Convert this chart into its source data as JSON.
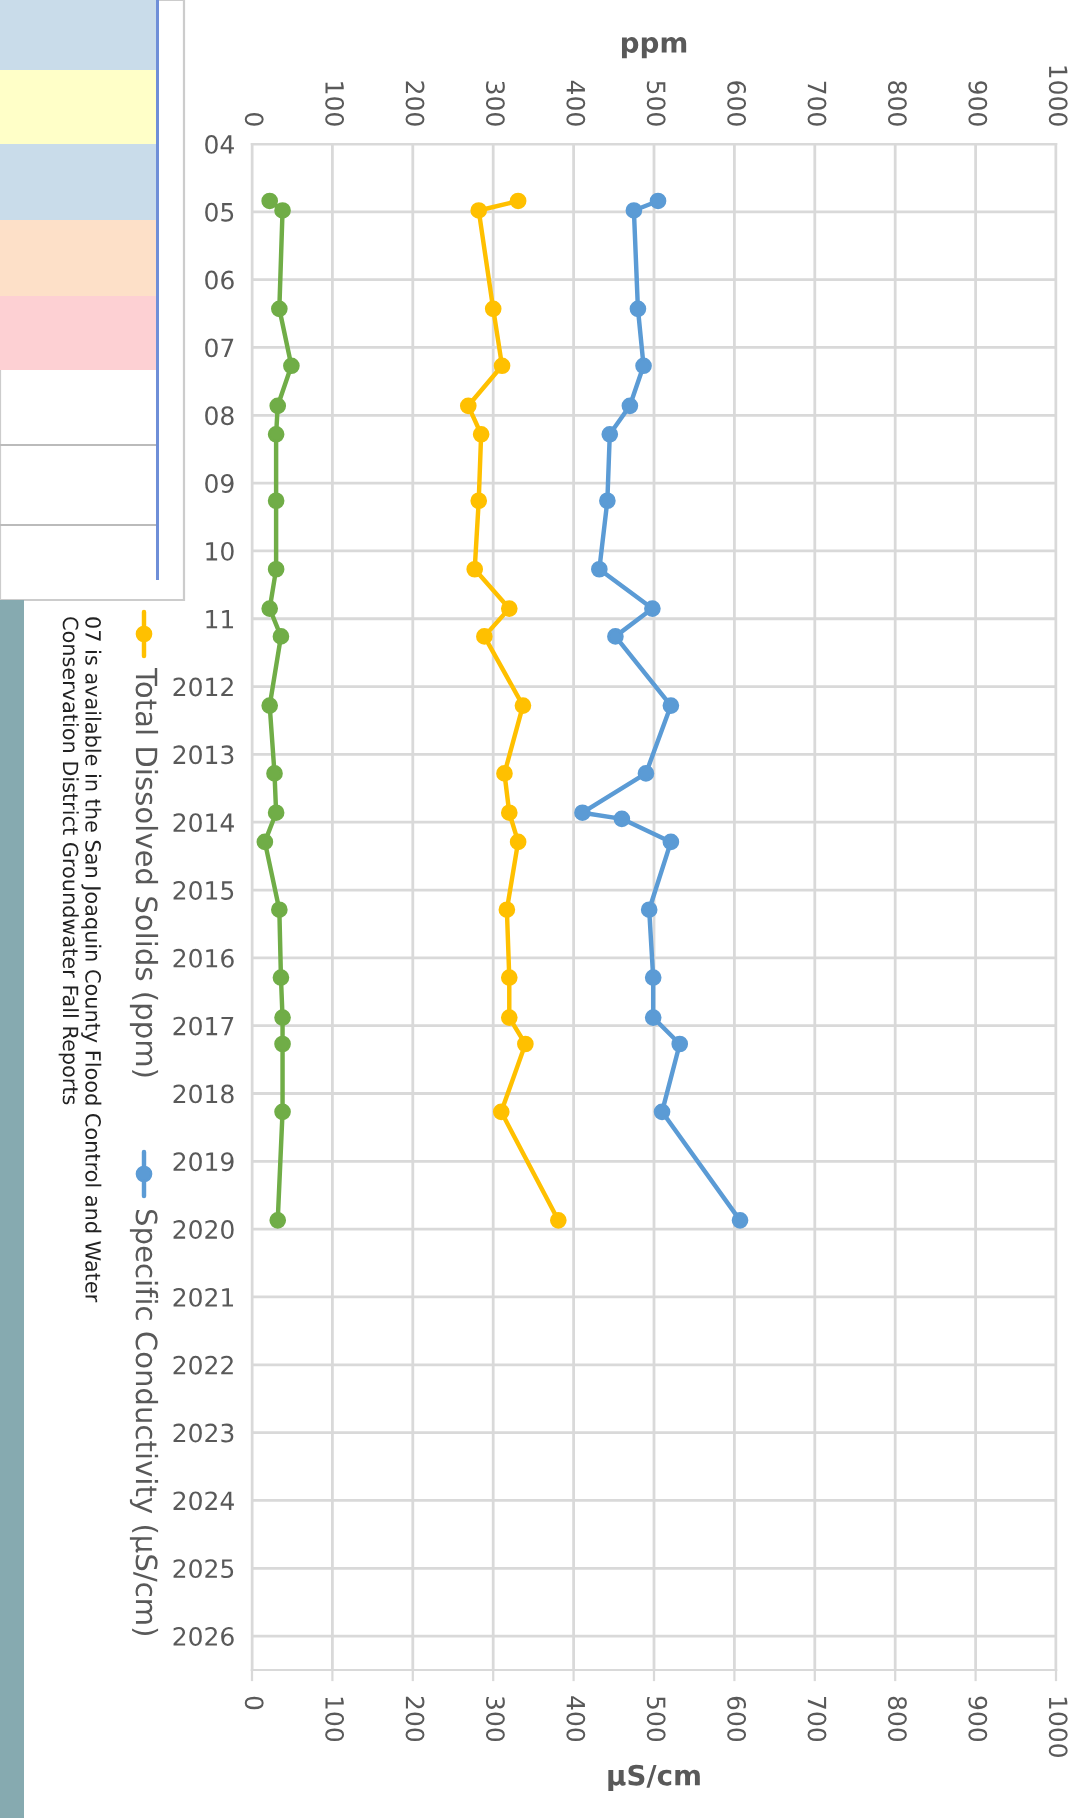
{
  "chart_data": {
    "type": "line",
    "orientation": "horizontal",
    "xlabel": "µS/cm",
    "x2label": "ppm",
    "xlim": [
      0,
      1000
    ],
    "xticks": [
      0,
      100,
      200,
      300,
      400,
      500,
      600,
      700,
      800,
      900,
      1000
    ],
    "x2lim": [
      0,
      1000
    ],
    "x2ticks": [
      0,
      100,
      200,
      300,
      400,
      500,
      600,
      700,
      800,
      900,
      1000
    ],
    "ylim": [
      2026.5,
      2004
    ],
    "yticks": [
      {
        "value": 2004,
        "label": "04"
      },
      {
        "value": 2005,
        "label": "05"
      },
      {
        "value": 2006,
        "label": "06"
      },
      {
        "value": 2007,
        "label": "07"
      },
      {
        "value": 2008,
        "label": "08"
      },
      {
        "value": 2009,
        "label": "09"
      },
      {
        "value": 2010,
        "label": "10"
      },
      {
        "value": 2011,
        "label": "11"
      },
      2012,
      2013,
      2014,
      2015,
      2016,
      2017,
      2018,
      2019,
      2020,
      2021,
      2022,
      2023,
      2024,
      2025,
      2026
    ],
    "grid": true,
    "legend": "left",
    "marker": "circle",
    "line_style": "solid",
    "annotations": [
      "07 is available in the San Joaquin County Flood Control and Water\nConservation District Groundwater Fall Reports"
    ],
    "series": [
      {
        "name": "Total Dissolved Solids (ppm)",
        "color": "#ffc000",
        "x": [
          2004.84,
          2004.98,
          2006.43,
          2007.27,
          2007.86,
          2008.28,
          2009.26,
          2010.27,
          2010.85,
          2011.26,
          2012.28,
          2013.28,
          2013.86,
          2014.29,
          2015.29,
          2016.29,
          2016.88,
          2017.27,
          2018.27,
          2019.87
        ],
        "values": [
          331,
          282,
          300,
          311,
          269,
          285,
          282,
          277,
          320,
          289,
          337,
          314,
          320,
          331,
          317,
          320,
          320,
          340,
          310,
          381
        ]
      },
      {
        "color": "#70ad47",
        "x": [
          2004.84,
          2004.98,
          2006.43,
          2007.27,
          2007.86,
          2008.28,
          2009.26,
          2010.27,
          2010.85,
          2011.26,
          2012.28,
          2013.28,
          2013.86,
          2014.29,
          2015.29,
          2016.29,
          2016.88,
          2017.27,
          2018.27,
          2019.87
        ],
        "values": [
          22,
          38,
          34,
          49,
          32,
          30,
          30,
          30,
          22,
          36,
          22,
          28,
          30,
          16,
          34,
          36,
          38,
          38,
          38,
          32
        ]
      },
      {
        "name": "Specific Conductivity (µS/cm)",
        "color": "#5b9bd5",
        "x": [
          2004.84,
          2004.98,
          2006.43,
          2007.27,
          2007.86,
          2008.28,
          2009.26,
          2010.27,
          2010.85,
          2011.26,
          2012.28,
          2013.28,
          2013.86,
          2013.95,
          2014.29,
          2015.29,
          2016.29,
          2016.88,
          2017.27,
          2018.27,
          2019.87
        ],
        "values": [
          505,
          475,
          480,
          487,
          470,
          445,
          442,
          432,
          498,
          452,
          521,
          490,
          411,
          460,
          521,
          494,
          499,
          499,
          532,
          510,
          607
        ]
      }
    ]
  }
}
